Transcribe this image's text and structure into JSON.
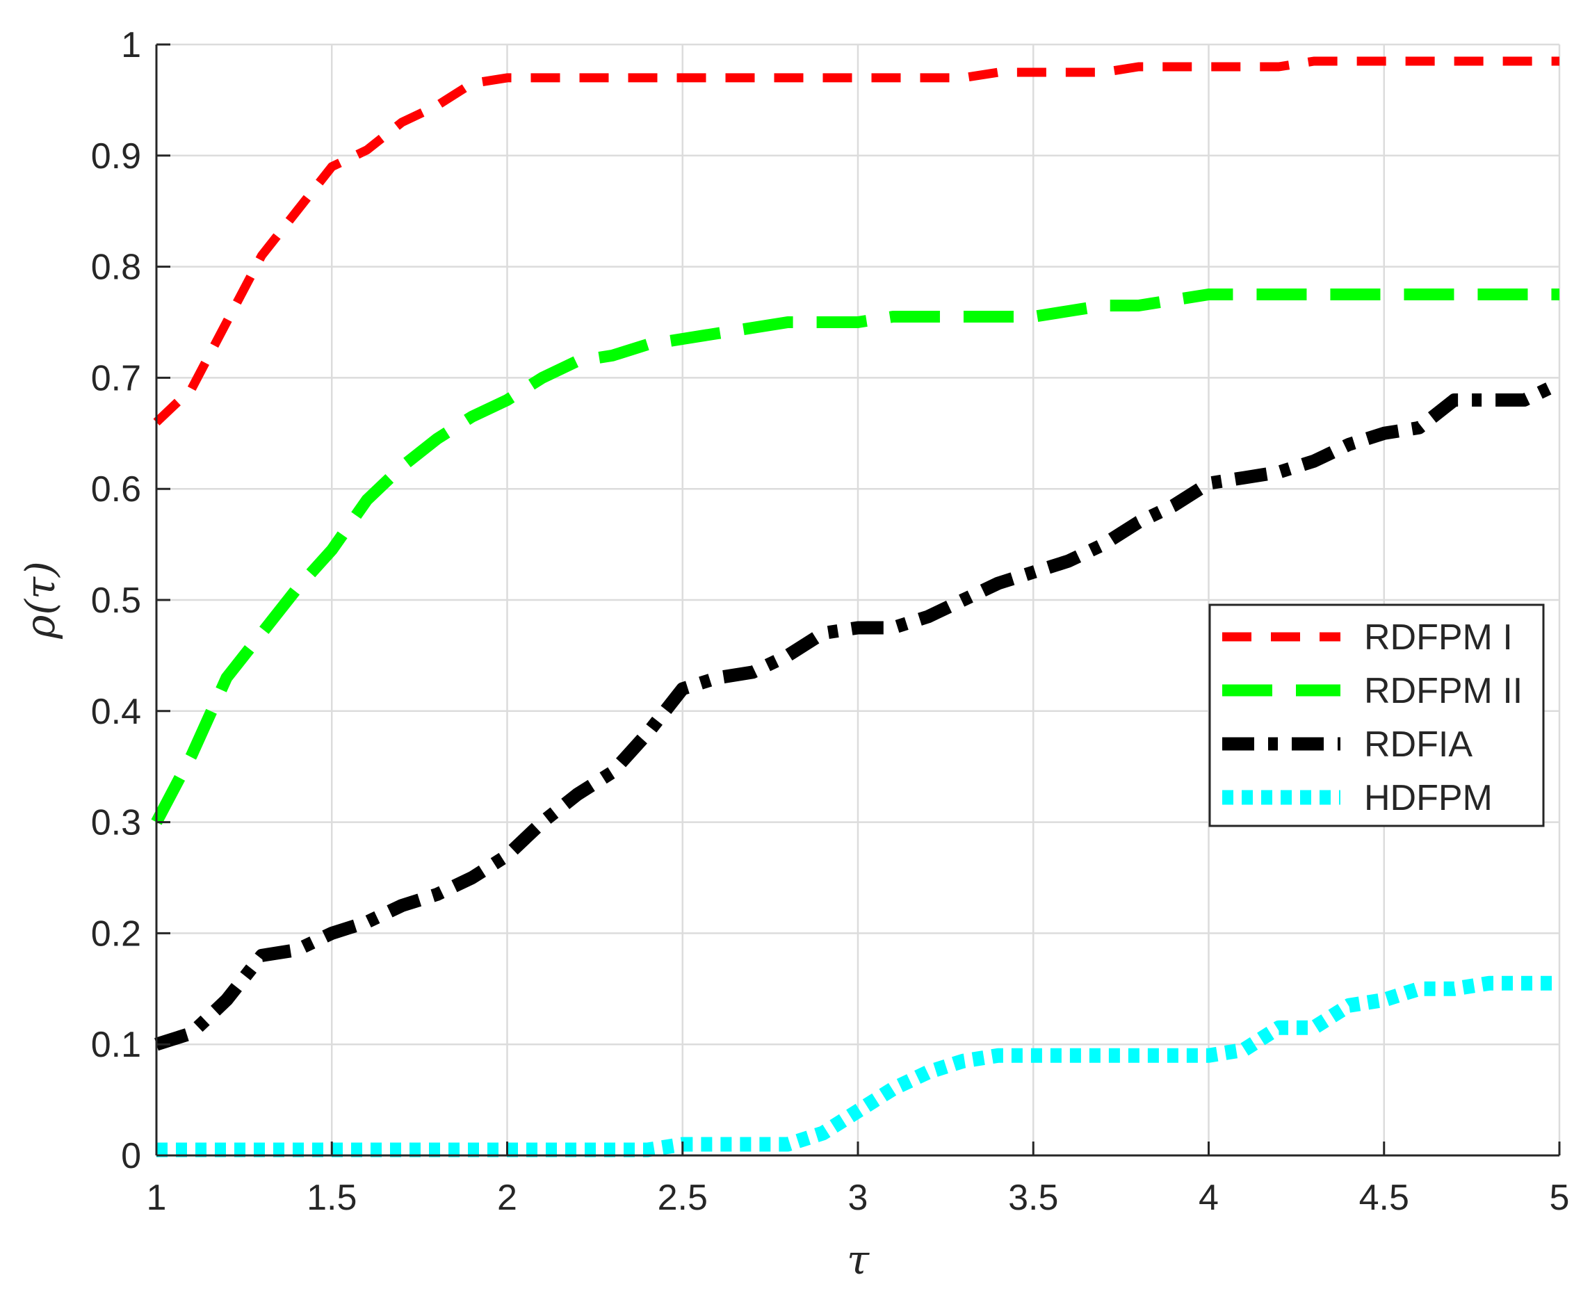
{
  "chart_data": {
    "type": "line",
    "xlabel": "τ",
    "ylabel": "ρ(τ)",
    "xlim": [
      1,
      5
    ],
    "ylim": [
      0,
      1
    ],
    "grid": true,
    "legend_position": "right-middle",
    "xticks": [
      1,
      1.5,
      2,
      2.5,
      3,
      3.5,
      4,
      4.5,
      5
    ],
    "xtick_labels": [
      "1",
      "1.5",
      "2",
      "2.5",
      "3",
      "3.5",
      "4",
      "4.5",
      "5"
    ],
    "yticks": [
      0,
      0.1,
      0.2,
      0.3,
      0.4,
      0.5,
      0.6,
      0.7,
      0.8,
      0.9,
      1
    ],
    "ytick_labels": [
      "0",
      "0.1",
      "0.2",
      "0.3",
      "0.4",
      "0.5",
      "0.6",
      "0.7",
      "0.8",
      "0.9",
      "1"
    ],
    "x": [
      1.0,
      1.1,
      1.2,
      1.3,
      1.4,
      1.5,
      1.6,
      1.7,
      1.8,
      1.9,
      2.0,
      2.1,
      2.2,
      2.3,
      2.4,
      2.5,
      2.6,
      2.7,
      2.8,
      2.9,
      3.0,
      3.1,
      3.2,
      3.3,
      3.4,
      3.5,
      3.6,
      3.7,
      3.8,
      3.9,
      4.0,
      4.1,
      4.2,
      4.3,
      4.4,
      4.5,
      4.6,
      4.7,
      4.8,
      4.9,
      5.0
    ],
    "series": [
      {
        "name": "RDFPM I",
        "color": "#ff0000",
        "dash": "short",
        "values": [
          0.66,
          0.69,
          0.75,
          0.81,
          0.85,
          0.89,
          0.905,
          0.93,
          0.945,
          0.965,
          0.97,
          0.97,
          0.97,
          0.97,
          0.97,
          0.97,
          0.97,
          0.97,
          0.97,
          0.97,
          0.97,
          0.97,
          0.97,
          0.97,
          0.975,
          0.975,
          0.975,
          0.975,
          0.98,
          0.98,
          0.98,
          0.98,
          0.98,
          0.985,
          0.985,
          0.985,
          0.985,
          0.985,
          0.985,
          0.985,
          0.985
        ]
      },
      {
        "name": "RDFPM II",
        "color": "#00ff00",
        "dash": "long",
        "values": [
          0.3,
          0.36,
          0.43,
          0.47,
          0.51,
          0.545,
          0.59,
          0.62,
          0.645,
          0.665,
          0.68,
          0.7,
          0.715,
          0.72,
          0.73,
          0.735,
          0.74,
          0.745,
          0.75,
          0.75,
          0.75,
          0.755,
          0.755,
          0.755,
          0.755,
          0.755,
          0.76,
          0.765,
          0.765,
          0.77,
          0.775,
          0.775,
          0.775,
          0.775,
          0.775,
          0.775,
          0.775,
          0.775,
          0.775,
          0.775,
          0.775
        ]
      },
      {
        "name": "RDFIA",
        "color": "#000000",
        "dash": "dashdot",
        "values": [
          0.1,
          0.11,
          0.14,
          0.18,
          0.185,
          0.2,
          0.21,
          0.225,
          0.235,
          0.25,
          0.27,
          0.3,
          0.325,
          0.345,
          0.38,
          0.42,
          0.43,
          0.435,
          0.45,
          0.47,
          0.475,
          0.475,
          0.485,
          0.5,
          0.515,
          0.525,
          0.535,
          0.55,
          0.57,
          0.585,
          0.605,
          0.61,
          0.615,
          0.625,
          0.64,
          0.65,
          0.655,
          0.68,
          0.68,
          0.68,
          0.695
        ]
      },
      {
        "name": "HDFPM",
        "color": "#00ffff",
        "dash": "dotted",
        "values": [
          0.005,
          0.005,
          0.005,
          0.005,
          0.005,
          0.005,
          0.005,
          0.005,
          0.005,
          0.005,
          0.005,
          0.005,
          0.005,
          0.005,
          0.005,
          0.01,
          0.01,
          0.01,
          0.01,
          0.02,
          0.04,
          0.06,
          0.075,
          0.085,
          0.09,
          0.09,
          0.09,
          0.09,
          0.09,
          0.09,
          0.09,
          0.095,
          0.115,
          0.115,
          0.135,
          0.14,
          0.15,
          0.15,
          0.155,
          0.155,
          0.155
        ]
      }
    ]
  }
}
